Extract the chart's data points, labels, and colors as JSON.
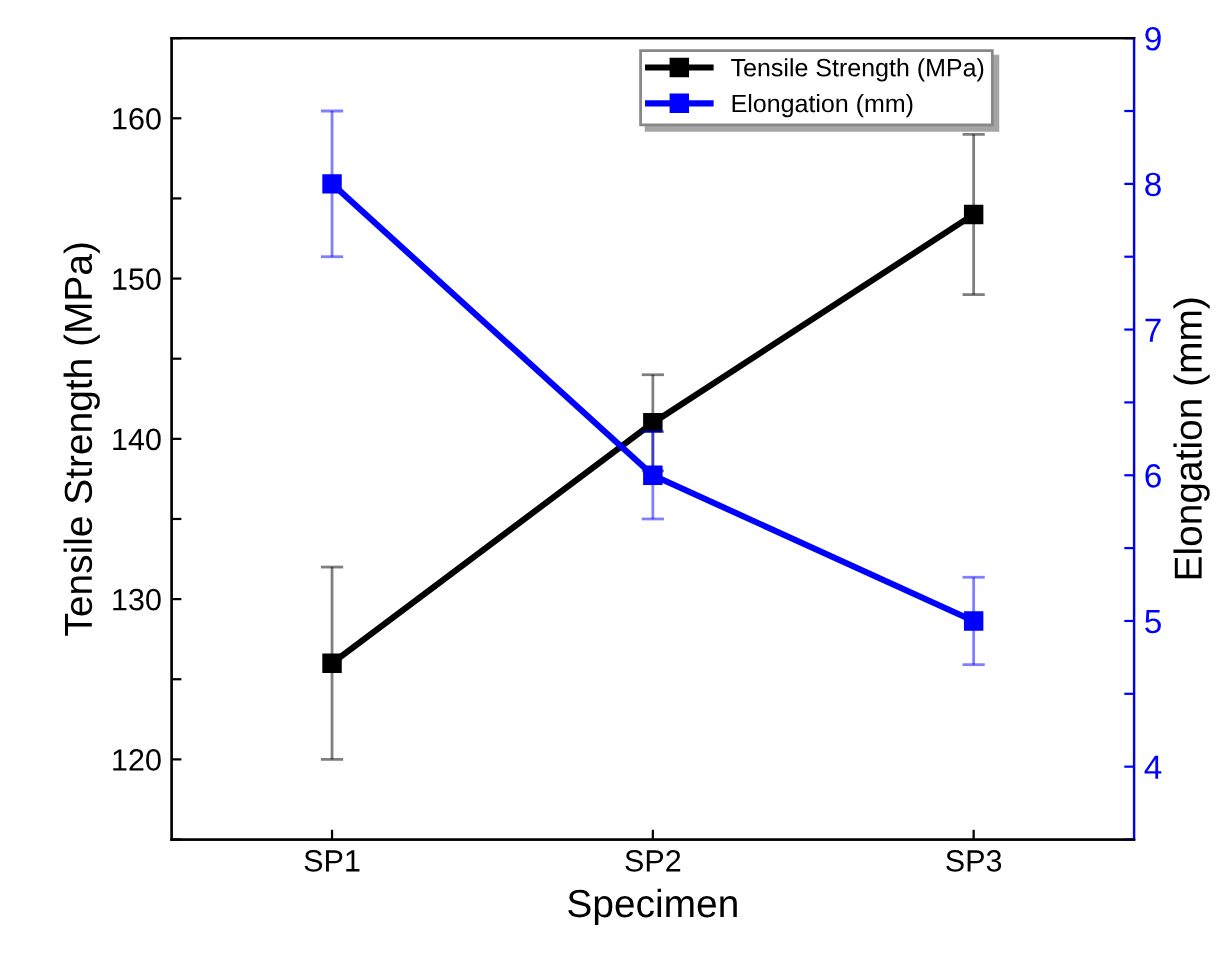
{
  "chart_data": {
    "type": "line",
    "xlabel": "Specimen",
    "ylabel": "Tensile Strength (MPa)",
    "y2label": "Elongation (mm)",
    "categories": [
      "SP1",
      "SP2",
      "SP3"
    ],
    "series": [
      {
        "name": "Tensile Strength (MPa)",
        "color": "#000000",
        "values": [
          126,
          141,
          154
        ],
        "errors": [
          6,
          3,
          5
        ]
      },
      {
        "name": "Elongation (mm)",
        "color": "#0000ff",
        "values": [
          8,
          6,
          5
        ],
        "errors": [
          0.5,
          0.3,
          0.3
        ],
        "axis": "y2"
      }
    ],
    "ylim": [
      115,
      165
    ],
    "yticks": [
      {
        "value": 115,
        "label": null
      },
      120,
      {
        "value": 125,
        "label": null
      },
      130,
      {
        "value": 135,
        "label": null
      },
      140,
      {
        "value": 145,
        "label": null
      },
      150,
      {
        "value": 155,
        "label": null
      },
      160,
      {
        "value": 165,
        "label": null
      }
    ],
    "y2lim": [
      3.5,
      9
    ],
    "y2ticks": [
      {
        "value": 3.5,
        "label": null
      },
      4,
      {
        "value": 4.5,
        "label": null
      },
      5,
      {
        "value": 5.5,
        "label": null
      },
      6,
      {
        "value": 6.5,
        "label": null
      },
      7,
      {
        "value": 7.5,
        "label": null
      },
      8,
      {
        "value": 8.5,
        "label": null
      },
      9
    ],
    "marker": "square",
    "line_style": "solid",
    "grid": false,
    "legend": "top"
  }
}
